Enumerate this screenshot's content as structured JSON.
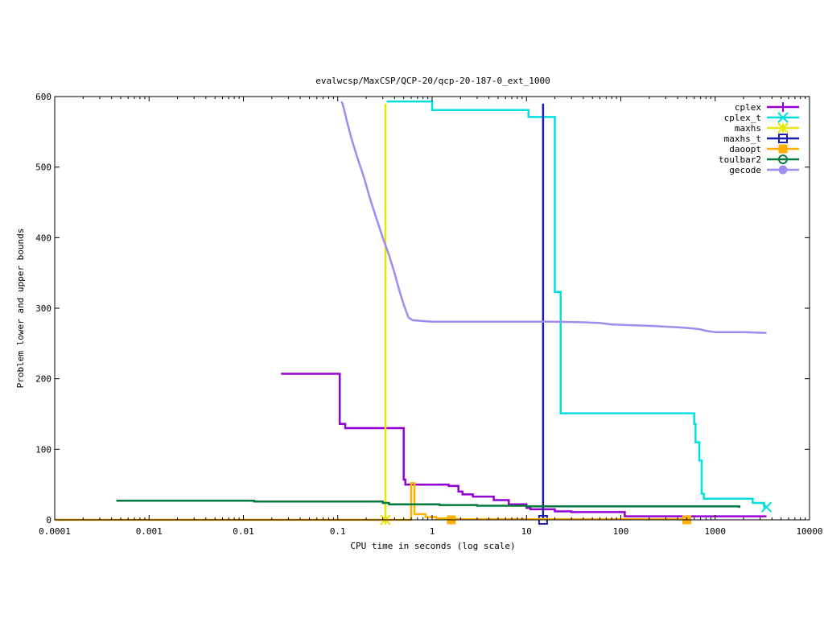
{
  "chart_data": {
    "type": "line",
    "title": "evalwcsp/MaxCSP/QCP-20/qcp-20-187-0_ext_1000",
    "xlabel": "CPU time in seconds (log scale)",
    "ylabel": "Problem lower and upper bounds",
    "xscale": "log",
    "xlim": [
      0.0001,
      10000
    ],
    "ylim": [
      0,
      600
    ],
    "x_ticks": [
      {
        "value": 0.0001,
        "label": "0.0001"
      },
      {
        "value": 0.001,
        "label": "0.001"
      },
      {
        "value": 0.01,
        "label": "0.01"
      },
      {
        "value": 0.1,
        "label": "0.1"
      },
      {
        "value": 1,
        "label": "1"
      },
      {
        "value": 10,
        "label": "10"
      },
      {
        "value": 100,
        "label": "100"
      },
      {
        "value": 1000,
        "label": "1000"
      },
      {
        "value": 10000,
        "label": "10000"
      }
    ],
    "y_ticks": [
      {
        "value": 0,
        "label": "0"
      },
      {
        "value": 100,
        "label": "100"
      },
      {
        "value": 200,
        "label": "200"
      },
      {
        "value": 300,
        "label": "300"
      },
      {
        "value": 400,
        "label": "400"
      },
      {
        "value": 500,
        "label": "500"
      },
      {
        "value": 600,
        "label": "600"
      }
    ],
    "grid": false,
    "legend_position": "top-right",
    "series": [
      {
        "name": "cplex",
        "color": "#9400d3",
        "marker": "plus",
        "step": true,
        "points": [
          [
            0.025,
            207
          ],
          [
            0.105,
            207
          ],
          [
            0.105,
            136
          ],
          [
            0.12,
            136
          ],
          [
            0.12,
            130
          ],
          [
            0.5,
            130
          ],
          [
            0.5,
            57
          ],
          [
            0.52,
            57
          ],
          [
            0.52,
            50
          ],
          [
            1.5,
            50
          ],
          [
            1.5,
            48
          ],
          [
            1.9,
            48
          ],
          [
            1.9,
            40
          ],
          [
            2.1,
            40
          ],
          [
            2.1,
            36
          ],
          [
            2.7,
            36
          ],
          [
            2.7,
            33
          ],
          [
            4.5,
            33
          ],
          [
            4.5,
            28
          ],
          [
            6.5,
            28
          ],
          [
            6.5,
            22
          ],
          [
            10,
            22
          ],
          [
            10,
            17
          ],
          [
            11,
            17
          ],
          [
            11,
            15
          ],
          [
            20,
            15
          ],
          [
            20,
            12
          ],
          [
            30,
            12
          ],
          [
            30,
            11
          ],
          [
            110,
            11
          ],
          [
            110,
            5
          ],
          [
            3500,
            5
          ]
        ],
        "marker_points": []
      },
      {
        "name": "cplex_t",
        "color": "#00e0e0",
        "marker": "cross",
        "step": true,
        "points": [
          [
            0.33,
            593
          ],
          [
            1.0,
            593
          ],
          [
            1.0,
            581
          ],
          [
            10.5,
            581
          ],
          [
            10.5,
            571
          ],
          [
            20,
            571
          ],
          [
            20,
            323
          ],
          [
            23,
            323
          ],
          [
            23,
            151
          ],
          [
            600,
            151
          ],
          [
            600,
            136
          ],
          [
            620,
            136
          ],
          [
            620,
            110
          ],
          [
            680,
            110
          ],
          [
            680,
            84
          ],
          [
            720,
            84
          ],
          [
            720,
            37
          ],
          [
            760,
            37
          ],
          [
            760,
            30
          ],
          [
            2500,
            30
          ],
          [
            2500,
            24
          ],
          [
            3300,
            24
          ],
          [
            3300,
            18
          ],
          [
            3500,
            18
          ]
        ],
        "marker_points": [
          [
            3500,
            18
          ]
        ]
      },
      {
        "name": "maxhs",
        "color": "#e8e800",
        "marker": "star",
        "step": true,
        "points": [
          [
            0.32,
            590
          ],
          [
            0.32,
            0
          ]
        ],
        "marker_points": [
          [
            0.32,
            0
          ]
        ]
      },
      {
        "name": "maxhs_t",
        "color": "#1c1cb0",
        "marker": "box",
        "step": true,
        "points": [
          [
            15,
            590
          ],
          [
            15,
            0
          ]
        ],
        "marker_points": [
          [
            15,
            0
          ]
        ]
      },
      {
        "name": "daoopt",
        "color": "#ffb000",
        "marker": "filled-box",
        "step": true,
        "points": [
          [
            0.0001,
            0
          ],
          [
            0.6,
            0
          ],
          [
            0.6,
            52
          ],
          [
            0.65,
            52
          ],
          [
            0.65,
            8
          ],
          [
            0.85,
            8
          ],
          [
            0.85,
            4
          ],
          [
            1.1,
            4
          ],
          [
            1.1,
            2
          ],
          [
            1.5,
            2
          ],
          [
            1.5,
            1
          ],
          [
            500,
            1
          ]
        ],
        "marker_points": [
          [
            1.6,
            0
          ],
          [
            500,
            0
          ]
        ]
      },
      {
        "name": "toulbar2",
        "color": "#007a3d",
        "marker": "circle",
        "step": true,
        "points": [
          [
            0.00045,
            27
          ],
          [
            0.013,
            27
          ],
          [
            0.013,
            26
          ],
          [
            0.3,
            26
          ],
          [
            0.3,
            24
          ],
          [
            0.35,
            24
          ],
          [
            0.35,
            22
          ],
          [
            1.2,
            22
          ],
          [
            1.2,
            21
          ],
          [
            3,
            21
          ],
          [
            3,
            20
          ],
          [
            10,
            20
          ],
          [
            10,
            19
          ],
          [
            1800,
            19
          ],
          [
            1800,
            17
          ]
        ],
        "marker_points": []
      },
      {
        "name": "gecode",
        "color": "#a08cf0",
        "marker": "filled-circle",
        "step": false,
        "points": [
          [
            0.11,
            593
          ],
          [
            0.115,
            585
          ],
          [
            0.125,
            565
          ],
          [
            0.14,
            540
          ],
          [
            0.16,
            515
          ],
          [
            0.19,
            485
          ],
          [
            0.22,
            455
          ],
          [
            0.26,
            425
          ],
          [
            0.3,
            400
          ],
          [
            0.35,
            375
          ],
          [
            0.4,
            350
          ],
          [
            0.45,
            325
          ],
          [
            0.5,
            305
          ],
          [
            0.56,
            287
          ],
          [
            0.62,
            283
          ],
          [
            0.75,
            282
          ],
          [
            1.0,
            281
          ],
          [
            1.5,
            281
          ],
          [
            5,
            281
          ],
          [
            10,
            281
          ],
          [
            20,
            281
          ],
          [
            40,
            280
          ],
          [
            60,
            279
          ],
          [
            80,
            277
          ],
          [
            120,
            276
          ],
          [
            200,
            275
          ],
          [
            280,
            274
          ],
          [
            400,
            273
          ],
          [
            500,
            272
          ],
          [
            600,
            271
          ],
          [
            700,
            270
          ],
          [
            800,
            268
          ],
          [
            1000,
            266
          ],
          [
            2000,
            266
          ],
          [
            3500,
            265
          ]
        ],
        "marker_points": []
      }
    ]
  }
}
